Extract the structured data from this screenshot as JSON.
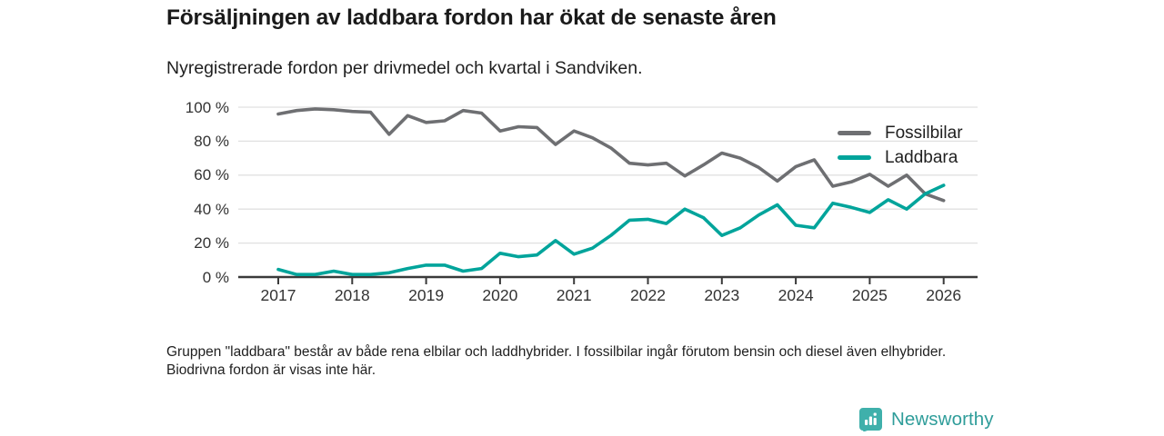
{
  "header": {
    "title": "Försäljningen av laddbara fordon har ökat de senaste åren",
    "subtitle": "Nyregistrerade fordon per drivmedel och kvartal i Sandviken."
  },
  "chart_data": {
    "type": "line",
    "x_unit": "quarter",
    "x_range": [
      "2017 Q1",
      "2026 Q1"
    ],
    "x_tick_labels": [
      "2017",
      "2018",
      "2019",
      "2020",
      "2021",
      "2022",
      "2023",
      "2024",
      "2025",
      "2026"
    ],
    "y_ticks": [
      0,
      20,
      40,
      60,
      80,
      100
    ],
    "y_tick_labels": [
      "0 %",
      "20 %",
      "40 %",
      "60 %",
      "80 %",
      "100 %"
    ],
    "ylim": [
      0,
      100
    ],
    "grid": true,
    "legend_position": "top-right",
    "series": [
      {
        "name": "Fossilbilar",
        "color": "#6e6f72",
        "values": [
          96,
          98,
          99,
          98.5,
          97.5,
          97,
          84,
          95,
          91,
          92,
          98,
          96.5,
          86,
          88.5,
          88,
          78,
          86,
          82,
          76,
          67,
          66,
          67,
          59.5,
          66,
          73,
          70,
          64.5,
          56.5,
          65,
          69,
          53.5,
          56,
          60.5,
          53.5,
          60,
          49,
          45
        ]
      },
      {
        "name": "Laddbara",
        "color": "#00a49b",
        "values": [
          4.5,
          1.5,
          1.5,
          3.5,
          1.5,
          1.5,
          2.5,
          5,
          7,
          7,
          3.5,
          5,
          14,
          12,
          13,
          21.5,
          13.5,
          17,
          24.5,
          33.5,
          34,
          31.5,
          40,
          35,
          24.5,
          29,
          36.5,
          42.5,
          30.5,
          29,
          43.5,
          41,
          38,
          45.5,
          40,
          49,
          54
        ]
      }
    ]
  },
  "footnote": "Gruppen \"laddbara\" består av både rena elbilar och laddhybrider. I fossilbilar ingår förutom bensin och diesel även elhybrider. Biodrivna fordon är visas inte här.",
  "logo": {
    "text": "Newsworthy"
  },
  "colors": {
    "line_gray": "#6e6f72",
    "accent_teal": "#00a49b",
    "grid": "#e0e0e0",
    "axis": "#3a3a3a",
    "logo_text_teal": "#2f9d9a",
    "logo_badge_teal": "#3fb0ab"
  }
}
